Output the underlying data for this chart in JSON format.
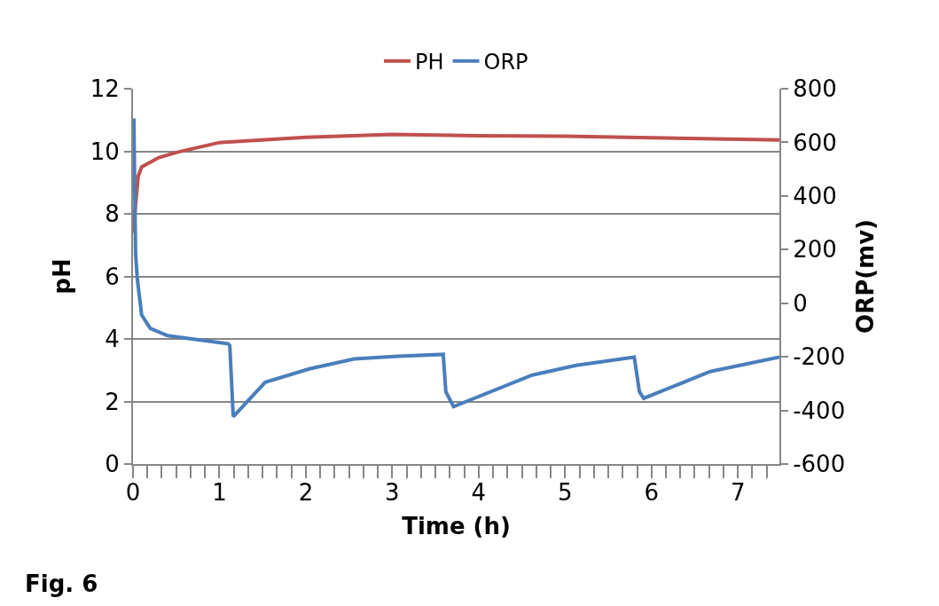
{
  "chart_data": {
    "type": "line",
    "xlabel": "Time (h)",
    "ylabel": "pH",
    "y2label": "ORP(mv)",
    "xlim": [
      0,
      7.48
    ],
    "xticks": [
      0,
      1,
      2,
      3,
      4,
      5,
      6,
      7
    ],
    "ylim": [
      0,
      12
    ],
    "yticks": [
      0,
      2,
      4,
      6,
      8,
      10,
      12
    ],
    "y2lim": [
      -600,
      800
    ],
    "y2ticks": [
      -600,
      -400,
      -200,
      0,
      200,
      400,
      600,
      800
    ],
    "grid": "y",
    "legend": "top",
    "marker": "none",
    "annotations": [
      "Fig. 6"
    ],
    "series": [
      {
        "name": "PH",
        "color": "#c0504d",
        "x": [
          0,
          0.06,
          0.1,
          0.3,
          0.5,
          1,
          2,
          3,
          4,
          5,
          6,
          7.48
        ],
        "values": [
          7.4,
          9.2,
          9.5,
          9.8,
          9.96,
          10.28,
          10.45,
          10.54,
          10.5,
          10.48,
          10.43,
          10.36
        ]
      },
      {
        "name": "ORP",
        "color": "#4a7ebb",
        "axis": "y2",
        "x": [
          0.01,
          0.03,
          0.05,
          0.1,
          0.2,
          0.4,
          0.7,
          1.1,
          1.12,
          1.16,
          1.53,
          2.04,
          2.56,
          3.07,
          3.59,
          3.62,
          3.71,
          4.62,
          5.13,
          5.8,
          5.86,
          5.91,
          6.68,
          7.48
        ],
        "values": [
          689,
          184,
          90,
          -44,
          -94,
          -121,
          -134,
          -151,
          -158,
          -423,
          -295,
          -245,
          -208,
          -198,
          -191,
          -330,
          -386,
          -268,
          -232,
          -201,
          -330,
          -355,
          -255,
          -201
        ]
      }
    ]
  }
}
